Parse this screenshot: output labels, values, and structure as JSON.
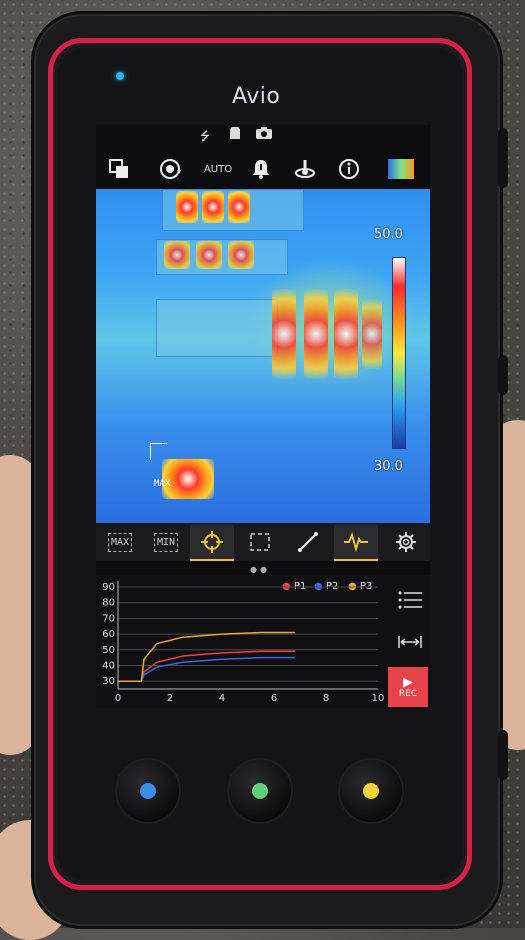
{
  "device": {
    "brand": "Avio"
  },
  "status_bar": {
    "icons": [
      "usb-icon",
      "sd-card-icon",
      "camera-icon"
    ]
  },
  "toolbar": {
    "items": [
      {
        "icon": "palette-layers-icon"
      },
      {
        "icon": "rotate-icon"
      },
      {
        "label": "AUTO"
      },
      {
        "icon": "alarm-bell-icon"
      },
      {
        "icon": "emissivity-icon"
      },
      {
        "icon": "info-icon"
      },
      {
        "icon": "thermal-palette-icon"
      }
    ]
  },
  "thermal_view": {
    "scale_max": "50.0",
    "scale_min": "30.0",
    "marker_label": "MAX",
    "palette_colors": [
      "#ffffff",
      "#ff2a2a",
      "#ff9a1a",
      "#ffe53a",
      "#7ee08a",
      "#2aa0f5",
      "#1a3aa8"
    ]
  },
  "mode_bar": {
    "items": [
      {
        "label": "MAX",
        "selected": false
      },
      {
        "label": "MIN",
        "selected": false
      },
      {
        "icon": "crosshair-icon",
        "selected": true
      },
      {
        "icon": "area-box-icon",
        "selected": false
      },
      {
        "icon": "line-icon",
        "selected": false
      },
      {
        "icon": "waveform-icon",
        "selected": true
      },
      {
        "icon": "gear-icon",
        "selected": false
      }
    ]
  },
  "trend_graph": {
    "legend": [
      "P1",
      "P2",
      "P3"
    ],
    "rec_label": "REC"
  },
  "chart_data": {
    "type": "line",
    "xlim": [
      0,
      10
    ],
    "ylim": [
      25,
      90
    ],
    "x_ticks": [
      "0",
      "2",
      "4",
      "6",
      "8",
      "10"
    ],
    "y_ticks": [
      "30",
      "40",
      "50",
      "60",
      "70",
      "80",
      "90"
    ],
    "series": [
      {
        "name": "P1",
        "color": "#e8424a",
        "x": [
          0,
          0.9,
          1.0,
          1.5,
          2.5,
          4,
          5.5,
          6.8
        ],
        "y": [
          30,
          30,
          36,
          42,
          46,
          48,
          49,
          49
        ]
      },
      {
        "name": "P2",
        "color": "#3a66e8",
        "x": [
          0,
          0.9,
          1.0,
          1.5,
          2.5,
          4,
          5.5,
          6.8
        ],
        "y": [
          30,
          30,
          34,
          39,
          42,
          44,
          45,
          45
        ]
      },
      {
        "name": "P3",
        "color": "#e8a83a",
        "x": [
          0,
          0.9,
          1.0,
          1.5,
          2.5,
          4,
          5.5,
          6.8
        ],
        "y": [
          30,
          30,
          44,
          54,
          58,
          60,
          61,
          61
        ]
      }
    ]
  },
  "hardware_buttons": [
    {
      "color": "#3a8ee8"
    },
    {
      "color": "#5fd07a"
    },
    {
      "color": "#f4d23a"
    }
  ]
}
